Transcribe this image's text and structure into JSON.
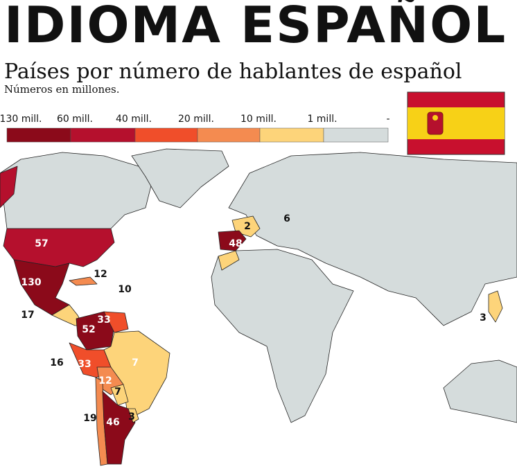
{
  "header": {
    "title": "IDIOMA ESPAÑOL",
    "subtitle": "Países por número de hablantes de español",
    "note": "Números en millones."
  },
  "legend": [
    {
      "label": "130 mill.",
      "color": "#8b0a1a"
    },
    {
      "label": "60 mill.",
      "color": "#b5102d"
    },
    {
      "label": "40 mill.",
      "color": "#f04e2a"
    },
    {
      "label": "20 mill.",
      "color": "#f48b50"
    },
    {
      "label": "10 mill.",
      "color": "#fdd47a"
    },
    {
      "label": "1 mill.",
      "color": "#d5dcdc"
    },
    {
      "label": "-",
      "color": "#d5dcdc"
    }
  ],
  "labels": [
    57,
    130,
    12,
    10,
    17,
    52,
    33,
    16,
    33,
    7,
    12,
    7,
    19,
    46,
    3,
    48,
    2,
    6,
    3
  ]
}
